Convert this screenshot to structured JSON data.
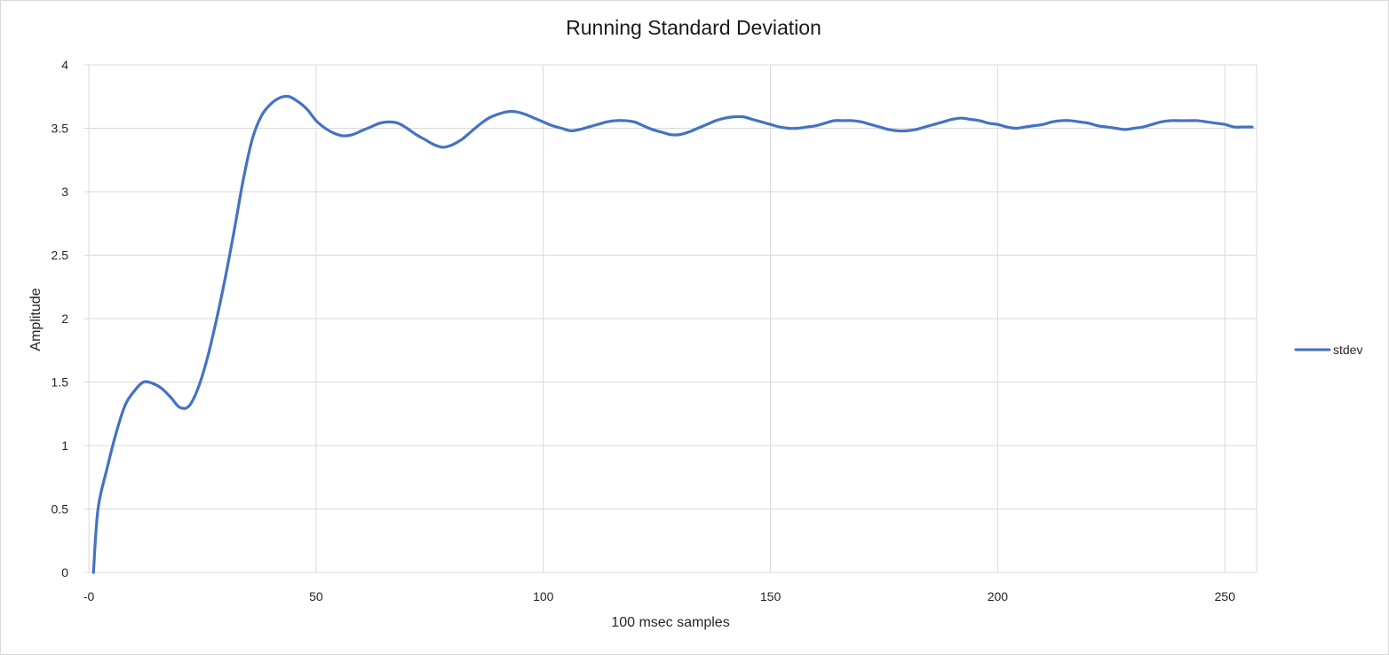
{
  "chart_data": {
    "type": "line",
    "title": "Running Standard Deviation",
    "xlabel": "100 msec samples",
    "ylabel": "Amplitude",
    "xlim": [
      -1,
      257
    ],
    "ylim": [
      0,
      4
    ],
    "x_ticks": [
      0,
      50,
      100,
      150,
      200,
      250
    ],
    "x_tick_labels": [
      "-0",
      "50",
      "100",
      "150",
      "200",
      "250"
    ],
    "y_ticks": [
      0,
      0.5,
      1,
      1.5,
      2,
      2.5,
      3,
      3.5,
      4
    ],
    "y_tick_labels": [
      "0",
      "0.5",
      "1",
      "1.5",
      "2",
      "2.5",
      "3",
      "3.5",
      "4"
    ],
    "grid": true,
    "legend_position": "right",
    "series": [
      {
        "name": "stdev",
        "color": "#4472c4",
        "points": [
          [
            1,
            0
          ],
          [
            2,
            0.5
          ],
          [
            4,
            0.82
          ],
          [
            6,
            1.1
          ],
          [
            8,
            1.32
          ],
          [
            10,
            1.43
          ],
          [
            12,
            1.5
          ],
          [
            14,
            1.49
          ],
          [
            16,
            1.45
          ],
          [
            18,
            1.38
          ],
          [
            20,
            1.3
          ],
          [
            22,
            1.31
          ],
          [
            24,
            1.45
          ],
          [
            26,
            1.68
          ],
          [
            28,
            1.98
          ],
          [
            30,
            2.32
          ],
          [
            32,
            2.7
          ],
          [
            34,
            3.1
          ],
          [
            36,
            3.42
          ],
          [
            38,
            3.6
          ],
          [
            40,
            3.69
          ],
          [
            42,
            3.74
          ],
          [
            44,
            3.75
          ],
          [
            46,
            3.71
          ],
          [
            48,
            3.65
          ],
          [
            50,
            3.56
          ],
          [
            52,
            3.5
          ],
          [
            54,
            3.46
          ],
          [
            56,
            3.44
          ],
          [
            58,
            3.45
          ],
          [
            60,
            3.48
          ],
          [
            62,
            3.51
          ],
          [
            64,
            3.54
          ],
          [
            66,
            3.55
          ],
          [
            68,
            3.54
          ],
          [
            70,
            3.5
          ],
          [
            72,
            3.45
          ],
          [
            74,
            3.41
          ],
          [
            76,
            3.37
          ],
          [
            78,
            3.35
          ],
          [
            80,
            3.37
          ],
          [
            82,
            3.41
          ],
          [
            84,
            3.47
          ],
          [
            86,
            3.53
          ],
          [
            88,
            3.58
          ],
          [
            90,
            3.61
          ],
          [
            92,
            3.63
          ],
          [
            94,
            3.63
          ],
          [
            96,
            3.61
          ],
          [
            98,
            3.58
          ],
          [
            100,
            3.55
          ],
          [
            102,
            3.52
          ],
          [
            104,
            3.5
          ],
          [
            106,
            3.48
          ],
          [
            108,
            3.49
          ],
          [
            110,
            3.51
          ],
          [
            112,
            3.53
          ],
          [
            114,
            3.55
          ],
          [
            116,
            3.56
          ],
          [
            118,
            3.56
          ],
          [
            120,
            3.55
          ],
          [
            122,
            3.52
          ],
          [
            124,
            3.49
          ],
          [
            126,
            3.47
          ],
          [
            128,
            3.45
          ],
          [
            130,
            3.45
          ],
          [
            132,
            3.47
          ],
          [
            134,
            3.5
          ],
          [
            136,
            3.53
          ],
          [
            138,
            3.56
          ],
          [
            140,
            3.58
          ],
          [
            142,
            3.59
          ],
          [
            144,
            3.59
          ],
          [
            146,
            3.57
          ],
          [
            148,
            3.55
          ],
          [
            150,
            3.53
          ],
          [
            152,
            3.51
          ],
          [
            154,
            3.5
          ],
          [
            156,
            3.5
          ],
          [
            158,
            3.51
          ],
          [
            160,
            3.52
          ],
          [
            162,
            3.54
          ],
          [
            164,
            3.56
          ],
          [
            166,
            3.56
          ],
          [
            168,
            3.56
          ],
          [
            170,
            3.55
          ],
          [
            172,
            3.53
          ],
          [
            174,
            3.51
          ],
          [
            176,
            3.49
          ],
          [
            178,
            3.48
          ],
          [
            180,
            3.48
          ],
          [
            182,
            3.49
          ],
          [
            184,
            3.51
          ],
          [
            186,
            3.53
          ],
          [
            188,
            3.55
          ],
          [
            190,
            3.57
          ],
          [
            192,
            3.58
          ],
          [
            194,
            3.57
          ],
          [
            196,
            3.56
          ],
          [
            198,
            3.54
          ],
          [
            200,
            3.53
          ],
          [
            202,
            3.51
          ],
          [
            204,
            3.5
          ],
          [
            206,
            3.51
          ],
          [
            208,
            3.52
          ],
          [
            210,
            3.53
          ],
          [
            212,
            3.55
          ],
          [
            214,
            3.56
          ],
          [
            216,
            3.56
          ],
          [
            218,
            3.55
          ],
          [
            220,
            3.54
          ],
          [
            222,
            3.52
          ],
          [
            224,
            3.51
          ],
          [
            226,
            3.5
          ],
          [
            228,
            3.49
          ],
          [
            230,
            3.5
          ],
          [
            232,
            3.51
          ],
          [
            234,
            3.53
          ],
          [
            236,
            3.55
          ],
          [
            238,
            3.56
          ],
          [
            240,
            3.56
          ],
          [
            242,
            3.56
          ],
          [
            244,
            3.56
          ],
          [
            246,
            3.55
          ],
          [
            248,
            3.54
          ],
          [
            250,
            3.53
          ],
          [
            252,
            3.51
          ],
          [
            254,
            3.51
          ],
          [
            256,
            3.51
          ]
        ]
      }
    ]
  }
}
